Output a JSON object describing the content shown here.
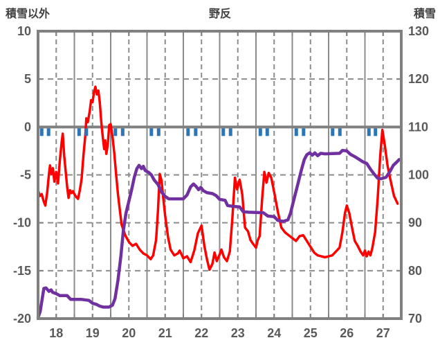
{
  "header": {
    "left_label": "積雪以外",
    "title": "野反",
    "right_label": "積雪"
  },
  "chart_data": {
    "type": "line",
    "title": "野反",
    "x_axis": {
      "range": [
        18,
        28
      ],
      "tick_labels": [
        "18",
        "19",
        "20",
        "21",
        "22",
        "23",
        "24",
        "25",
        "26",
        "27"
      ],
      "grid_solid_days": [
        19,
        20,
        21,
        22,
        23,
        24,
        25,
        26,
        27
      ],
      "grid_dashed_days": [
        18.5,
        19.5,
        20.5,
        21.5,
        22.5,
        23.5,
        24.5,
        25.5,
        26.5,
        27.5
      ],
      "minor_tick_step": 0.5
    },
    "left_axis": {
      "label": "積雪以外",
      "range": [
        -20,
        10
      ],
      "ticks": [
        10,
        5,
        0,
        -5,
        -10,
        -15,
        -20
      ],
      "grid_dashed_values": [
        5,
        -5,
        -10,
        -15
      ],
      "zero_line_value": 0
    },
    "right_axis": {
      "label": "積雪",
      "range": [
        70,
        130
      ],
      "ticks": [
        130,
        120,
        110,
        100,
        90,
        80,
        70
      ]
    },
    "series": [
      {
        "name": "積雪以外",
        "kind": "line",
        "axis": "left",
        "color": "#ff0000",
        "width": 3.5,
        "points": [
          [
            18.0,
            -6.6
          ],
          [
            18.05,
            -7.2
          ],
          [
            18.1,
            -7.0
          ],
          [
            18.15,
            -7.7
          ],
          [
            18.2,
            -8.2
          ],
          [
            18.25,
            -6.9
          ],
          [
            18.3,
            -4.9
          ],
          [
            18.33,
            -4.0
          ],
          [
            18.37,
            -4.9
          ],
          [
            18.41,
            -4.3
          ],
          [
            18.45,
            -5.7
          ],
          [
            18.5,
            -4.7
          ],
          [
            18.55,
            -5.9
          ],
          [
            18.6,
            -3.5
          ],
          [
            18.65,
            -1.6
          ],
          [
            18.68,
            -0.7
          ],
          [
            18.72,
            -3.0
          ],
          [
            18.76,
            -4.6
          ],
          [
            18.8,
            -6.2
          ],
          [
            18.84,
            -7.4
          ],
          [
            18.88,
            -6.6
          ],
          [
            18.92,
            -6.9
          ],
          [
            18.96,
            -6.7
          ],
          [
            19.0,
            -7.0
          ],
          [
            19.05,
            -7.3
          ],
          [
            19.1,
            -7.5
          ],
          [
            19.15,
            -6.6
          ],
          [
            19.2,
            -5.4
          ],
          [
            19.25,
            -3.0
          ],
          [
            19.3,
            -0.9
          ],
          [
            19.33,
            0.9
          ],
          [
            19.37,
            0.5
          ],
          [
            19.42,
            1.6
          ],
          [
            19.46,
            2.8
          ],
          [
            19.5,
            2.6
          ],
          [
            19.54,
            3.6
          ],
          [
            19.58,
            4.2
          ],
          [
            19.62,
            3.4
          ],
          [
            19.66,
            3.8
          ],
          [
            19.7,
            2.6
          ],
          [
            19.74,
            0.6
          ],
          [
            19.78,
            -1.0
          ],
          [
            19.82,
            -2.3
          ],
          [
            19.85,
            -1.4
          ],
          [
            19.88,
            -2.8
          ],
          [
            19.92,
            -1.8
          ],
          [
            19.96,
            0.2
          ],
          [
            20.0,
            0.3
          ],
          [
            20.05,
            -1.0
          ],
          [
            20.1,
            -2.8
          ],
          [
            20.15,
            -5.0
          ],
          [
            20.2,
            -7.0
          ],
          [
            20.25,
            -8.6
          ],
          [
            20.3,
            -10.2
          ],
          [
            20.4,
            -11.3
          ],
          [
            20.5,
            -12.0
          ],
          [
            20.6,
            -12.4
          ],
          [
            20.7,
            -12.2
          ],
          [
            20.8,
            -12.8
          ],
          [
            20.9,
            -13.2
          ],
          [
            21.0,
            -13.4
          ],
          [
            21.1,
            -13.8
          ],
          [
            21.17,
            -13.4
          ],
          [
            21.25,
            -11.8
          ],
          [
            21.3,
            -8.8
          ],
          [
            21.35,
            -4.9
          ],
          [
            21.4,
            -5.6
          ],
          [
            21.45,
            -7.5
          ],
          [
            21.5,
            -9.3
          ],
          [
            21.58,
            -11.5
          ],
          [
            21.65,
            -12.8
          ],
          [
            21.75,
            -13.4
          ],
          [
            21.85,
            -13.2
          ],
          [
            21.9,
            -12.9
          ],
          [
            22.0,
            -13.7
          ],
          [
            22.1,
            -13.5
          ],
          [
            22.2,
            -14.1
          ],
          [
            22.3,
            -12.9
          ],
          [
            22.4,
            -11.1
          ],
          [
            22.5,
            -10.3
          ],
          [
            22.58,
            -12.4
          ],
          [
            22.65,
            -13.8
          ],
          [
            22.72,
            -14.9
          ],
          [
            22.8,
            -14.3
          ],
          [
            22.86,
            -13.1
          ],
          [
            22.92,
            -14.0
          ],
          [
            23.0,
            -13.3
          ],
          [
            23.05,
            -12.8
          ],
          [
            23.12,
            -13.6
          ],
          [
            23.2,
            -14.0
          ],
          [
            23.28,
            -13.0
          ],
          [
            23.35,
            -9.5
          ],
          [
            23.42,
            -5.3
          ],
          [
            23.48,
            -6.5
          ],
          [
            23.55,
            -5.5
          ],
          [
            23.62,
            -7.0
          ],
          [
            23.7,
            -10.5
          ],
          [
            23.78,
            -10.9
          ],
          [
            23.85,
            -11.8
          ],
          [
            23.92,
            -12.2
          ],
          [
            24.0,
            -12.6
          ],
          [
            24.05,
            -11.8
          ],
          [
            24.1,
            -11.4
          ],
          [
            24.17,
            -7.5
          ],
          [
            24.23,
            -4.7
          ],
          [
            24.29,
            -5.8
          ],
          [
            24.35,
            -4.8
          ],
          [
            24.42,
            -5.3
          ],
          [
            24.5,
            -6.8
          ],
          [
            24.6,
            -8.8
          ],
          [
            24.7,
            -10.5
          ],
          [
            24.8,
            -11.0
          ],
          [
            24.9,
            -11.3
          ],
          [
            25.0,
            -11.6
          ],
          [
            25.1,
            -11.9
          ],
          [
            25.2,
            -11.4
          ],
          [
            25.3,
            -11.3
          ],
          [
            25.4,
            -11.9
          ],
          [
            25.5,
            -12.5
          ],
          [
            25.6,
            -13.1
          ],
          [
            25.7,
            -13.4
          ],
          [
            25.8,
            -13.5
          ],
          [
            25.9,
            -13.6
          ],
          [
            26.0,
            -13.5
          ],
          [
            26.1,
            -13.4
          ],
          [
            26.2,
            -13.0
          ],
          [
            26.3,
            -12.6
          ],
          [
            26.38,
            -11.0
          ],
          [
            26.45,
            -9.0
          ],
          [
            26.5,
            -8.2
          ],
          [
            26.57,
            -9.0
          ],
          [
            26.65,
            -10.6
          ],
          [
            26.72,
            -11.9
          ],
          [
            26.8,
            -12.4
          ],
          [
            26.88,
            -13.0
          ],
          [
            26.95,
            -13.4
          ],
          [
            27.0,
            -12.9
          ],
          [
            27.05,
            -13.5
          ],
          [
            27.1,
            -13.0
          ],
          [
            27.15,
            -13.4
          ],
          [
            27.2,
            -12.7
          ],
          [
            27.28,
            -11.0
          ],
          [
            27.35,
            -7.5
          ],
          [
            27.42,
            -3.0
          ],
          [
            27.48,
            -0.3
          ],
          [
            27.55,
            -2.0
          ],
          [
            27.62,
            -4.0
          ],
          [
            27.7,
            -5.5
          ],
          [
            27.8,
            -7.2
          ],
          [
            27.9,
            -8.0
          ]
        ]
      },
      {
        "name": "積雪",
        "kind": "line",
        "axis": "right",
        "color": "#7030a0",
        "width": 4.5,
        "points": [
          [
            18.0,
            70.2
          ],
          [
            18.06,
            71.5
          ],
          [
            18.1,
            73.5
          ],
          [
            18.16,
            76.3
          ],
          [
            18.22,
            76.4
          ],
          [
            18.3,
            75.7
          ],
          [
            18.36,
            76.0
          ],
          [
            18.4,
            75.5
          ],
          [
            18.5,
            75.2
          ],
          [
            18.6,
            74.8
          ],
          [
            18.8,
            74.8
          ],
          [
            18.9,
            74.0
          ],
          [
            19.2,
            74.0
          ],
          [
            19.4,
            73.8
          ],
          [
            19.5,
            73.2
          ],
          [
            19.6,
            73.0
          ],
          [
            19.7,
            72.6
          ],
          [
            19.8,
            72.4
          ],
          [
            19.95,
            72.4
          ],
          [
            20.05,
            72.8
          ],
          [
            20.12,
            74.2
          ],
          [
            20.2,
            78.0
          ],
          [
            20.28,
            83.0
          ],
          [
            20.35,
            88.5
          ],
          [
            20.42,
            92.0
          ],
          [
            20.5,
            94.5
          ],
          [
            20.58,
            97.0
          ],
          [
            20.65,
            99.5
          ],
          [
            20.72,
            101.3
          ],
          [
            20.78,
            102.0
          ],
          [
            20.85,
            101.3
          ],
          [
            20.9,
            101.8
          ],
          [
            20.95,
            100.9
          ],
          [
            21.05,
            100.5
          ],
          [
            21.12,
            100.0
          ],
          [
            21.2,
            98.9
          ],
          [
            21.3,
            98.0
          ],
          [
            21.4,
            96.4
          ],
          [
            21.5,
            95.5
          ],
          [
            21.6,
            95.0
          ],
          [
            22.0,
            95.0
          ],
          [
            22.1,
            95.8
          ],
          [
            22.2,
            97.5
          ],
          [
            22.28,
            98.1
          ],
          [
            22.35,
            97.6
          ],
          [
            22.42,
            96.9
          ],
          [
            22.48,
            97.4
          ],
          [
            22.55,
            96.7
          ],
          [
            22.65,
            96.3
          ],
          [
            22.8,
            96.1
          ],
          [
            22.9,
            95.7
          ],
          [
            23.0,
            94.9
          ],
          [
            23.15,
            94.7
          ],
          [
            23.22,
            93.6
          ],
          [
            23.4,
            93.4
          ],
          [
            23.55,
            93.3
          ],
          [
            23.65,
            92.3
          ],
          [
            23.8,
            92.2
          ],
          [
            24.2,
            92.1
          ],
          [
            24.33,
            91.4
          ],
          [
            24.5,
            91.3
          ],
          [
            24.6,
            90.5
          ],
          [
            24.75,
            90.3
          ],
          [
            24.88,
            90.6
          ],
          [
            24.95,
            92.0
          ],
          [
            25.05,
            95.0
          ],
          [
            25.15,
            98.0
          ],
          [
            25.25,
            101.0
          ],
          [
            25.33,
            103.2
          ],
          [
            25.4,
            104.2
          ],
          [
            25.48,
            104.6
          ],
          [
            25.55,
            104.1
          ],
          [
            25.62,
            104.6
          ],
          [
            25.7,
            104.0
          ],
          [
            25.78,
            104.5
          ],
          [
            25.9,
            104.4
          ],
          [
            26.3,
            104.5
          ],
          [
            26.38,
            105.1
          ],
          [
            26.5,
            105.0
          ],
          [
            26.6,
            104.3
          ],
          [
            26.72,
            103.8
          ],
          [
            26.85,
            103.2
          ],
          [
            26.95,
            102.7
          ],
          [
            27.05,
            102.4
          ],
          [
            27.15,
            101.2
          ],
          [
            27.25,
            100.2
          ],
          [
            27.35,
            99.3
          ],
          [
            27.45,
            99.2
          ],
          [
            27.58,
            99.5
          ],
          [
            27.68,
            100.6
          ],
          [
            27.78,
            102.0
          ],
          [
            27.88,
            102.7
          ],
          [
            27.94,
            103.2
          ]
        ]
      },
      {
        "name": "precipitation-marks",
        "kind": "event-ticks",
        "axis": "left",
        "color": "#2e75b6",
        "tick_width": 5,
        "tick_height": 11,
        "x": [
          18.1,
          18.29,
          19.13,
          19.33,
          20.13,
          20.33,
          21.12,
          21.32,
          22.13,
          22.34,
          23.1,
          23.3,
          24.12,
          24.31,
          25.11,
          25.31,
          26.11,
          26.31,
          27.11,
          27.29
        ]
      }
    ],
    "colors": {
      "frame": "#808080",
      "grid": "#8c8c8c",
      "tick_text": "#595959",
      "title_text": "#404040",
      "background": "#ffffff"
    },
    "legend": "none",
    "grid": "on"
  }
}
